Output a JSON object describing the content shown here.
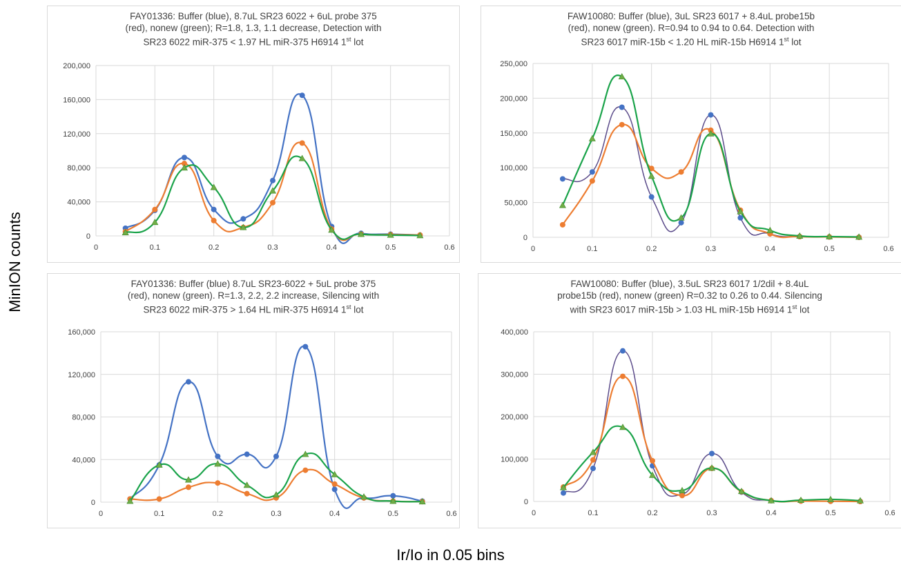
{
  "y_axis_label": "MinION counts",
  "x_axis_label": "Ir/Io in 0.05 bins",
  "colors": {
    "blue": "#4472c4",
    "orange": "#ed7d31",
    "green": "#1aa34a",
    "green_marker": "#70ad47",
    "purple": "#5b4b8a",
    "grid": "#d9d9d9"
  },
  "chart_data": [
    {
      "type": "line",
      "title_lines": [
        "FAY01336: Buffer (blue), 8.7uL SR23 6022 + 6uL probe 375",
        "(red), nonew (green); R=1.8, 1.3, 1.1 decrease, Detection with",
        "SR23 6022 miR-375 < 1.97 HL miR-375 H6914 1",
        "st",
        " lot"
      ],
      "x": [
        0.05,
        0.1,
        0.15,
        0.2,
        0.25,
        0.3,
        0.35,
        0.4,
        0.45,
        0.5,
        0.55
      ],
      "xlim": [
        0,
        0.6
      ],
      "xticks": [
        0,
        0.1,
        0.2,
        0.3,
        0.4,
        0.5,
        0.6
      ],
      "ylim": [
        0,
        200000
      ],
      "yticks": [
        0,
        40000,
        80000,
        120000,
        160000,
        200000
      ],
      "ytick_labels": [
        "0",
        "40,000",
        "80,000",
        "120,000",
        "160,000",
        "200,000"
      ],
      "series": [
        {
          "color": "blue",
          "marker": "circle",
          "values": [
            9000,
            30000,
            92000,
            31000,
            20000,
            65000,
            165000,
            11000,
            3000,
            2000,
            1000
          ]
        },
        {
          "color": "orange",
          "marker": "circle",
          "values": [
            5000,
            31000,
            85000,
            18000,
            10000,
            39000,
            109000,
            8000,
            2000,
            1500,
            1000
          ]
        },
        {
          "color": "green",
          "marker": "triangle",
          "values": [
            4000,
            16000,
            80000,
            57000,
            10000,
            53000,
            91000,
            7000,
            2000,
            1000,
            500
          ]
        }
      ]
    },
    {
      "type": "line",
      "title_lines": [
        "FAW10080: Buffer (blue), 3uL SR23 6017 + 8.4uL probe15b",
        "(red), nonew (green). R=0.94 to 0.94 to 0.64. Detection with",
        "SR23 6017 miR-15b < 1.20 HL miR-15b H6914 1",
        "st",
        " lot"
      ],
      "x": [
        0.05,
        0.1,
        0.15,
        0.2,
        0.25,
        0.3,
        0.35,
        0.4,
        0.45,
        0.5,
        0.55
      ],
      "xlim": [
        0,
        0.6
      ],
      "xticks": [
        0,
        0.1,
        0.2,
        0.3,
        0.4,
        0.5,
        0.6
      ],
      "ylim": [
        0,
        250000
      ],
      "yticks": [
        0,
        50000,
        100000,
        150000,
        200000,
        250000
      ],
      "ytick_labels": [
        "0",
        "50,000",
        "100,000",
        "150,000",
        "200,000",
        "250,000"
      ],
      "series": [
        {
          "color": "blue",
          "line_color": "purple",
          "marker": "circle",
          "values": [
            84000,
            94000,
            187000,
            58000,
            21000,
            176000,
            28000,
            5000,
            1000,
            500,
            0
          ]
        },
        {
          "color": "orange",
          "marker": "circle",
          "values": [
            18000,
            81000,
            162000,
            99000,
            94000,
            154000,
            39000,
            5000,
            1000,
            500,
            0
          ]
        },
        {
          "color": "green",
          "marker": "triangle",
          "values": [
            46000,
            142000,
            231000,
            88000,
            28000,
            149000,
            37000,
            10000,
            2000,
            1000,
            500
          ]
        }
      ]
    },
    {
      "type": "line",
      "title_lines": [
        "FAY01336: Buffer (blue) 8.7uL SR23-6022 + 5uL probe 375",
        "(red), nonew (green). R=1.3, 2.2, 2.2  increase, Silencing with",
        "SR23 6022 miR-375 > 1.64 HL miR-375 H6914 1",
        "st",
        " lot"
      ],
      "x": [
        0.05,
        0.1,
        0.15,
        0.2,
        0.25,
        0.3,
        0.35,
        0.4,
        0.45,
        0.5,
        0.55
      ],
      "xlim": [
        0,
        0.6
      ],
      "xticks": [
        0,
        0.1,
        0.2,
        0.3,
        0.4,
        0.5,
        0.6
      ],
      "ylim": [
        0,
        160000
      ],
      "yticks": [
        0,
        40000,
        80000,
        120000,
        160000
      ],
      "ytick_labels": [
        "0",
        "40,000",
        "80,000",
        "120,000",
        "160,000"
      ],
      "series": [
        {
          "color": "blue",
          "marker": "circle",
          "values": [
            3000,
            35000,
            113000,
            43000,
            45000,
            43000,
            146000,
            12000,
            4000,
            6000,
            1000
          ]
        },
        {
          "color": "orange",
          "marker": "circle",
          "values": [
            3000,
            3000,
            14000,
            18000,
            8000,
            4000,
            30000,
            17000,
            4000,
            1000,
            500
          ]
        },
        {
          "color": "green",
          "marker": "triangle",
          "values": [
            1000,
            35000,
            21000,
            36000,
            16000,
            7000,
            45000,
            26000,
            5000,
            1000,
            500
          ]
        }
      ]
    },
    {
      "type": "line",
      "title_lines": [
        "FAW10080: Buffer (blue), 3.5uL SR23 6017 1/2dil + 8.4uL",
        "probe15b (red), nonew (green) R=0.32 to 0.26 to 0.44. Silencing",
        "with SR23 6017 miR-15b > 1.03 HL miR-15b H6914 1",
        "st",
        " lot"
      ],
      "x": [
        0.05,
        0.1,
        0.15,
        0.2,
        0.25,
        0.3,
        0.35,
        0.4,
        0.45,
        0.5,
        0.55
      ],
      "xlim": [
        0,
        0.6
      ],
      "xticks": [
        0,
        0.1,
        0.2,
        0.3,
        0.4,
        0.5,
        0.6
      ],
      "ylim": [
        0,
        400000
      ],
      "yticks": [
        0,
        100000,
        200000,
        300000,
        400000
      ],
      "ytick_labels": [
        "0",
        "100,000",
        "200,000",
        "300,000",
        "400,000"
      ],
      "series": [
        {
          "color": "blue",
          "line_color": "purple",
          "marker": "circle",
          "values": [
            20000,
            78000,
            355000,
            84000,
            17000,
            113000,
            22000,
            2000,
            1000,
            500,
            0
          ]
        },
        {
          "color": "orange",
          "marker": "circle",
          "values": [
            34000,
            98000,
            295000,
            96000,
            14000,
            78000,
            23000,
            2000,
            1000,
            500,
            0
          ]
        },
        {
          "color": "green",
          "marker": "triangle",
          "values": [
            33000,
            116000,
            175000,
            62000,
            26000,
            79000,
            24000,
            2000,
            3000,
            5000,
            2000
          ]
        }
      ]
    }
  ]
}
